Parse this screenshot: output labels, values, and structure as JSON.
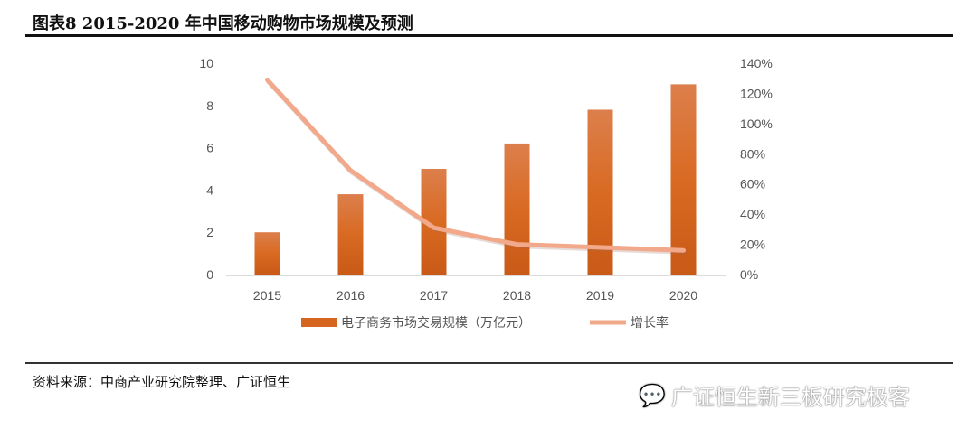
{
  "title": "图表8 2015-2020 年中国移动购物市场规模及预测",
  "source": "资料来源：中商产业研究院整理、广证恒生",
  "watermark": "广证恒生新三板研究极客",
  "colors": {
    "bar": "#d6661f",
    "line": "#f2a88a"
  },
  "chart_data": {
    "type": "bar",
    "categories": [
      "2015",
      "2016",
      "2017",
      "2018",
      "2019",
      "2020"
    ],
    "series": [
      {
        "name": "电子商务市场交易规模（万亿元）",
        "type": "bar",
        "axis": "left",
        "values": [
          2.0,
          3.8,
          5.0,
          6.2,
          7.8,
          9.0
        ]
      },
      {
        "name": "增长率",
        "type": "line",
        "axis": "right",
        "values": [
          129,
          69,
          31,
          20,
          18,
          16
        ]
      }
    ],
    "y_left": {
      "ticks": [
        "0",
        "2",
        "4",
        "6",
        "8",
        "10"
      ],
      "range": [
        0,
        10
      ]
    },
    "y_right": {
      "ticks": [
        "0%",
        "20%",
        "40%",
        "60%",
        "80%",
        "100%",
        "120%",
        "140%"
      ],
      "range": [
        0,
        140
      ]
    },
    "legend": "bottom",
    "grid": false
  }
}
